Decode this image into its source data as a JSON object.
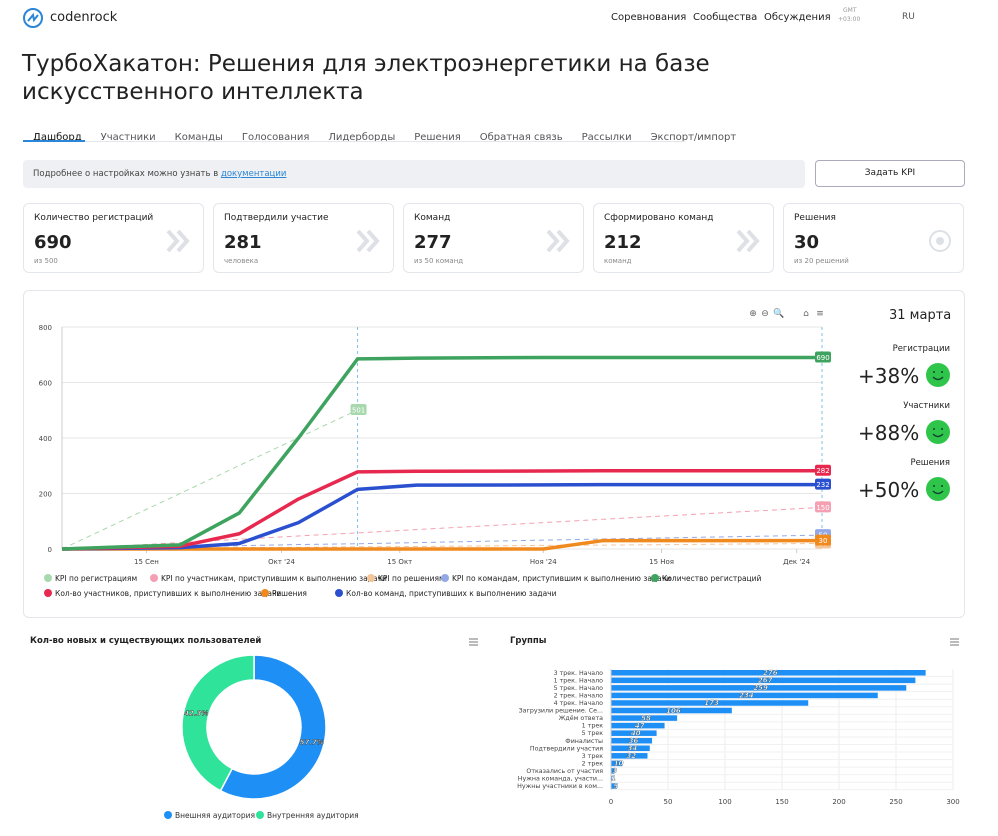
{
  "header": {
    "logo": "codenrock",
    "nav": [
      "Соревнования",
      "Сообщества",
      "Обсуждения"
    ],
    "tz": [
      "GMT",
      "+03:00"
    ],
    "lang": "RU"
  },
  "title": "ТурбоХакатон: Решения для электроэнергетики на базе искусственного интеллекта",
  "tabs": [
    "Дашборд",
    "Участники",
    "Команды",
    "Голосования",
    "Лидерборды",
    "Решения",
    "Обратная связь",
    "Рассылки",
    "Экспорт/импорт"
  ],
  "info": {
    "text": "Подробнее о настройках можно узнать в",
    "link": "документации",
    "button": "Задать KPI"
  },
  "cards": [
    {
      "label": "Количество регистраций",
      "value": 690,
      "sub": "из 500"
    },
    {
      "label": "Подтвердили участие",
      "value": 281,
      "sub": "человека"
    },
    {
      "label": "Команд",
      "value": 277,
      "sub": "из 50 команд"
    },
    {
      "label": "Сформировано команд",
      "value": 212,
      "sub": "команд"
    },
    {
      "label": "Решения",
      "value": 30,
      "sub": "из 20 решений"
    }
  ],
  "summary": {
    "date": "31 марта",
    "items": [
      {
        "label": "Регистрации",
        "value": "+38%"
      },
      {
        "label": "Участники",
        "value": "+88%"
      },
      {
        "label": "Решения",
        "value": "+50%"
      }
    ]
  },
  "chart_data": [
    {
      "type": "line",
      "x": [
        "2024-09-05",
        "2024-09-19",
        "2024-09-26",
        "2024-10-03",
        "2024-10-10",
        "2024-10-17",
        "2024-11-01",
        "2024-11-08",
        "2024-12-04"
      ],
      "xlim": [
        "2024-09-05",
        "2024-12-04"
      ],
      "xticks": [
        {
          "value": "2024-09-15",
          "label": "15 Сен"
        },
        {
          "value": "2024-10-01",
          "label": "Окт '24"
        },
        {
          "value": "2024-10-15",
          "label": "15 Окт"
        },
        {
          "value": "2024-11-01",
          "label": "Ноя '24"
        },
        {
          "value": "2024-11-15",
          "label": "15 Ноя"
        },
        {
          "value": "2024-12-01",
          "label": "Дек '24"
        }
      ],
      "ylim": [
        0,
        800
      ],
      "yticks": [
        0,
        200,
        400,
        600,
        800
      ],
      "grid": true,
      "series": [
        {
          "name": "KPI по регистрациям",
          "color": "#a8d8ad",
          "dashed": true,
          "values": [
            0,
            200,
            301,
            401,
            501,
            null,
            null,
            null,
            null
          ]
        },
        {
          "name": "KPI по участникам, приступившим к выполнению задачи",
          "color": "#f4a0b2",
          "dashed": true,
          "values": [
            0,
            23,
            35,
            47,
            58,
            70,
            95,
            107,
            150
          ]
        },
        {
          "name": "KPI по решениям",
          "color": "#f5c59a",
          "dashed": true,
          "values": [
            0,
            3,
            5,
            6,
            8,
            9,
            13,
            14,
            20
          ]
        },
        {
          "name": "KPI по командам, приступившим к выполнению задачи",
          "color": "#93a9e6",
          "dashed": true,
          "values": [
            0,
            8,
            12,
            16,
            19,
            23,
            32,
            36,
            50
          ]
        },
        {
          "name": "Количество регистраций",
          "color": "#3ea35e",
          "values": [
            0,
            15,
            130,
            400,
            685,
            688,
            690,
            690,
            690
          ]
        },
        {
          "name": "Кол-во участников, приступивших к выполнению задачи",
          "color": "#e8294f",
          "values": [
            0,
            10,
            55,
            180,
            278,
            280,
            281,
            282,
            282
          ]
        },
        {
          "name": "Решения",
          "color": "#f08a1e",
          "values": [
            0,
            0,
            0,
            0,
            0,
            0,
            0,
            30,
            30
          ]
        },
        {
          "name": "Кол-во команд, приступивших к выполнению задачи",
          "color": "#2a50d0",
          "values": [
            0,
            5,
            20,
            95,
            215,
            230,
            231,
            232,
            232
          ]
        }
      ]
    },
    {
      "type": "pie",
      "title": "Кол-во новых и существующих пользователей",
      "categories": [
        "Внешняя аудитория",
        "Внутренняя аудитория"
      ],
      "values": [
        57.7,
        42.3
      ],
      "value_labels": [
        "57.7%",
        "42.3%"
      ],
      "colors": [
        "#1e90f5",
        "#2fe39b"
      ]
    },
    {
      "type": "hbar",
      "title": "Группы",
      "color": "#1e90f5",
      "categories": [
        "3 трек. Начало",
        "1 трек. Начало",
        "5 трек. Начало",
        "2 трек. Начало",
        "4 трек. Начало",
        "Загрузили решение. Се...",
        "Ждём ответа",
        "1 трек",
        "5 трек",
        "Финалисты",
        "Подтвердили участия",
        "3 трек",
        "2 трек",
        "Отказались от участия",
        "Нужна команда, участи...",
        "Нужны участники в ком..."
      ],
      "values": [
        276,
        267,
        259,
        234,
        173,
        106,
        58,
        47,
        40,
        36,
        34,
        32,
        10,
        3,
        1,
        5
      ],
      "xlim": [
        0,
        300
      ],
      "xticks": [
        0,
        50,
        100,
        150,
        200,
        250,
        300
      ],
      "grid": true
    }
  ]
}
